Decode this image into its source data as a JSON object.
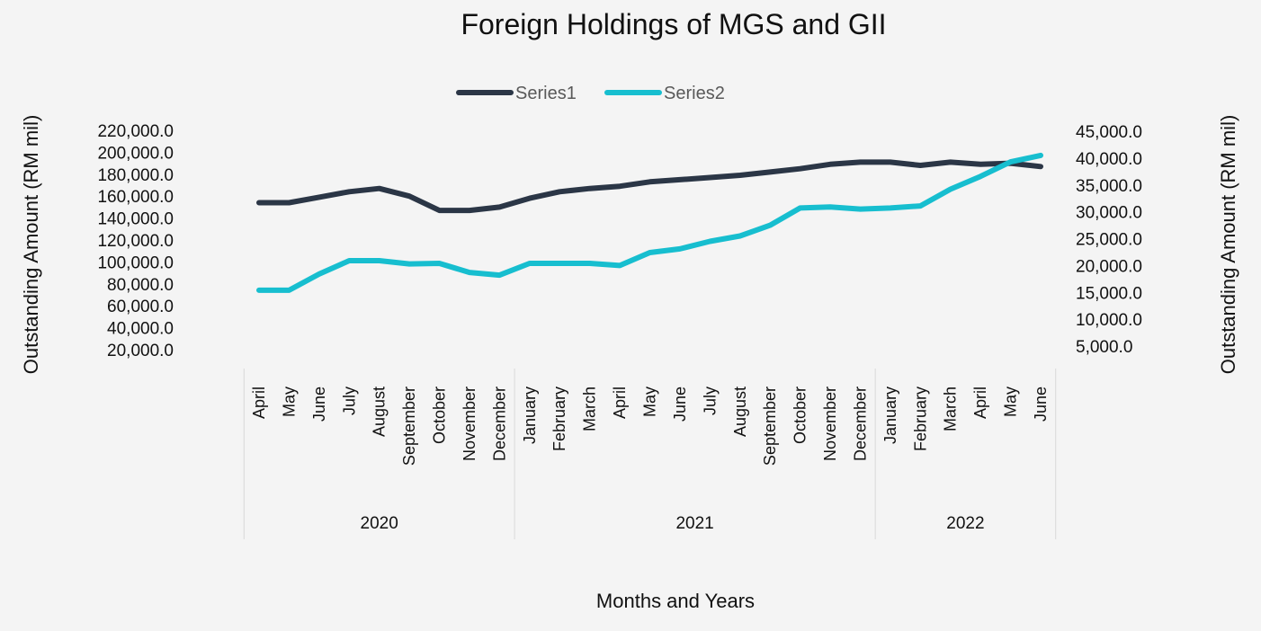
{
  "chart_data": {
    "type": "line",
    "title": "Foreign Holdings of MGS and GII",
    "xlabel": "Months and Years",
    "ylabel_left": "Outstanding Amount (RM mil)",
    "ylabel_right": "Outstanding Amount (RM mil)",
    "categories": [
      "April",
      "May",
      "June",
      "July",
      "August",
      "September",
      "October",
      "November",
      "December",
      "January",
      "February",
      "March",
      "April",
      "May",
      "June",
      "July",
      "August",
      "September",
      "October",
      "November",
      "December",
      "January",
      "February",
      "March",
      "April",
      "May",
      "June"
    ],
    "year_groups": [
      {
        "label": "2020",
        "start": 0,
        "end": 8
      },
      {
        "label": "2021",
        "start": 9,
        "end": 20
      },
      {
        "label": "2022",
        "start": 21,
        "end": 26
      }
    ],
    "y_left": {
      "min": 20000,
      "max": 220000,
      "step": 20000,
      "ticks": [
        "20,000.0",
        "40,000.0",
        "60,000.0",
        "80,000.0",
        "100,000.0",
        "120,000.0",
        "140,000.0",
        "160,000.0",
        "180,000.0",
        "200,000.0",
        "220,000.0"
      ]
    },
    "y_right": {
      "min": 5000,
      "max": 45000,
      "step": 5000,
      "ticks": [
        "5,000.0",
        "10,000.0",
        "15,000.0",
        "20,000.0",
        "25,000.0",
        "30,000.0",
        "35,000.0",
        "40,000.0",
        "45,000.0"
      ]
    },
    "legend_position": "top-center",
    "grid": false,
    "series": [
      {
        "name": "Series1",
        "axis": "left",
        "color": "#2b3646",
        "values": [
          154000,
          154000,
          159000,
          164000,
          167000,
          160000,
          147000,
          147000,
          150000,
          158000,
          164000,
          167000,
          169000,
          173000,
          175000,
          177000,
          179000,
          182000,
          185000,
          189000,
          191000,
          191000,
          188000,
          191000,
          189000,
          190000,
          187000
        ]
      },
      {
        "name": "Series2",
        "axis": "right",
        "color": "#17becf",
        "values": [
          15400,
          15400,
          18400,
          20900,
          20900,
          20300,
          20400,
          18700,
          18200,
          20400,
          20400,
          20400,
          20000,
          22400,
          23100,
          24500,
          25500,
          27500,
          30700,
          30900,
          30500,
          30700,
          31100,
          34200,
          36600,
          39300,
          40500
        ]
      }
    ]
  }
}
